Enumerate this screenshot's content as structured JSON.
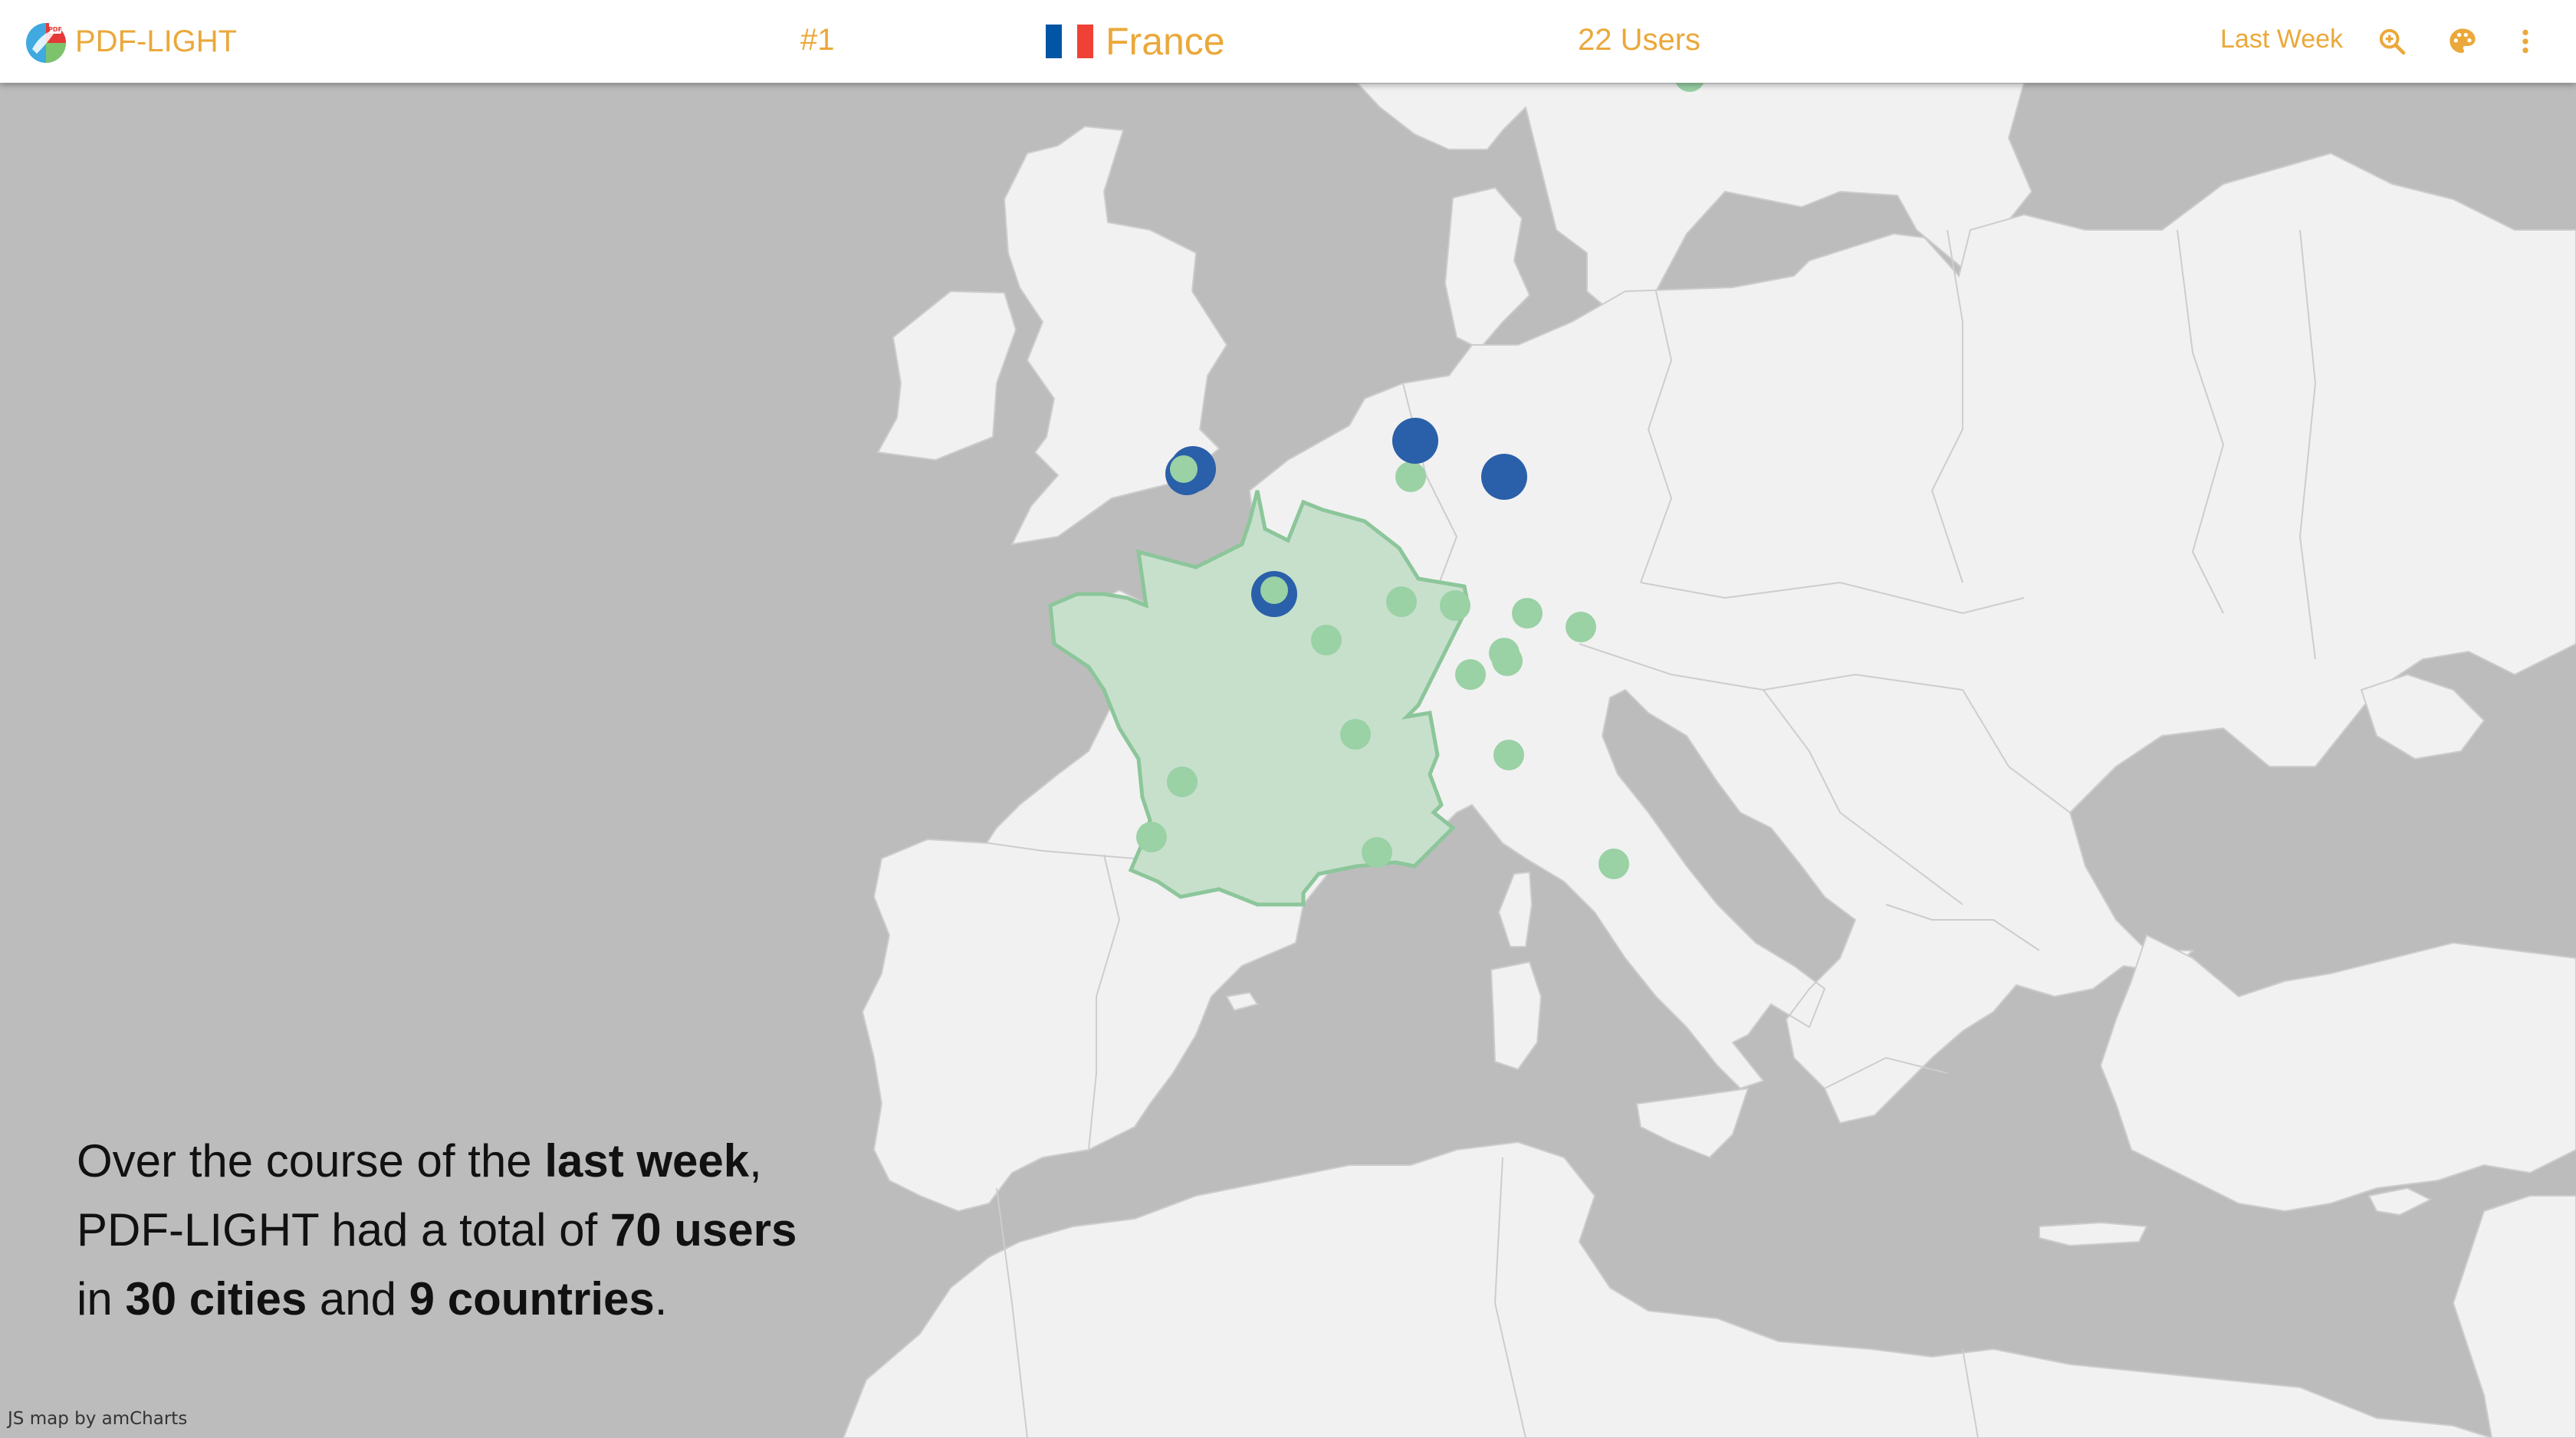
{
  "app": {
    "name": "PDF-LIGHT",
    "logo_icon": "pdf-light-logo-icon"
  },
  "header": {
    "rank": "#1",
    "country": "France",
    "flag_colors": [
      "#0055a4",
      "#ffffff",
      "#ef4135"
    ],
    "users": "22 Users",
    "period": "Last Week",
    "tools": [
      "zoom-in-icon",
      "palette-icon",
      "more-vert-icon"
    ],
    "accent_color": "#eba83a"
  },
  "summary": {
    "t1": "Over the course of the ",
    "b1": "last week",
    "t2": ",",
    "t3": "PDF-LIGHT had a total of ",
    "b2": "70 users",
    "t4": "in ",
    "b3": "30 cities",
    "t5": " and ",
    "b4": "9 countries",
    "t6": "."
  },
  "map": {
    "highlighted_country": "France",
    "colors": {
      "sea": "#bcbcbc",
      "land": "#f1f1f1",
      "border": "#cdcdcd",
      "highlight_fill": "#c7e0cc",
      "highlight_stroke": "#8cc69a",
      "city_marker": "#9ad1a5",
      "hub_marker": "#2a5fa9"
    },
    "credit": "JS map by amCharts"
  }
}
